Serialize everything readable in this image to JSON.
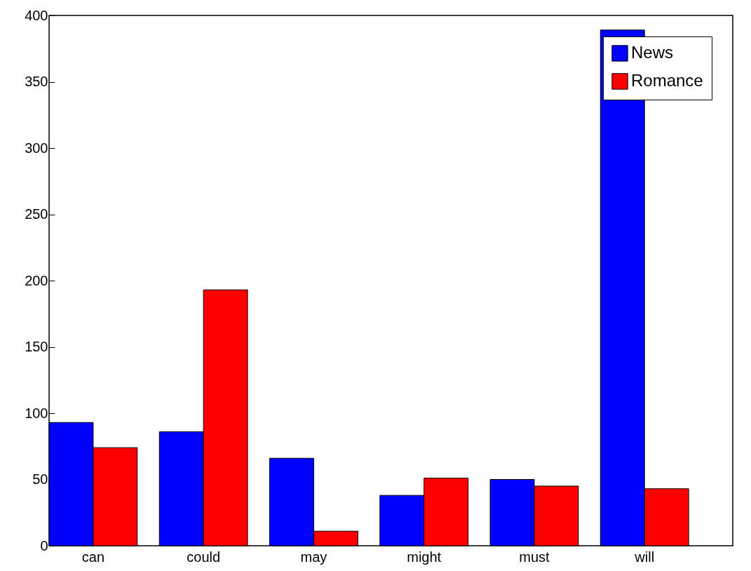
{
  "chart_data": {
    "type": "bar",
    "categories": [
      "can",
      "could",
      "may",
      "might",
      "must",
      "will"
    ],
    "series": [
      {
        "name": "News",
        "color": "#0000ff",
        "values": [
          93,
          86,
          66,
          38,
          50,
          389
        ]
      },
      {
        "name": "Romance",
        "color": "#ff0000",
        "values": [
          74,
          193,
          11,
          51,
          45,
          43
        ]
      }
    ],
    "ylim": [
      0,
      400
    ],
    "yticks": [
      0,
      50,
      100,
      150,
      200,
      250,
      300,
      350,
      400
    ],
    "grid": false,
    "legend": "top right"
  }
}
